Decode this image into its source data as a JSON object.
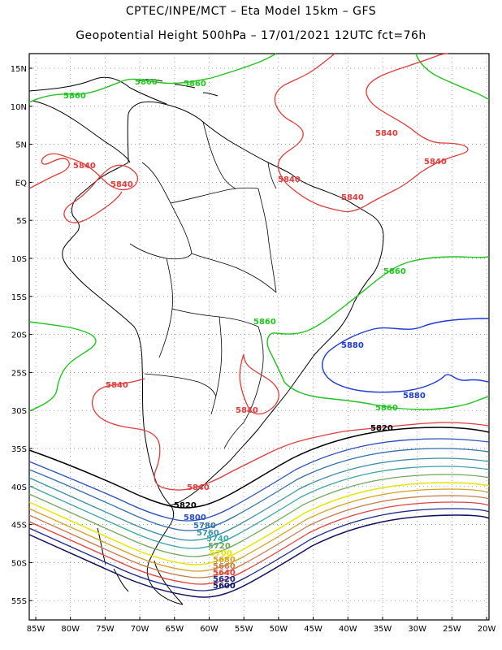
{
  "header": {
    "line1": "CPTEC/INPE/MCT –  Eta Model 15km – GFS",
    "line2": "Geopotential Height 500hPa – 17/01/2021 12UTC fct=76h"
  },
  "map": {
    "lon_labels": [
      "85W",
      "80W",
      "75W",
      "70W",
      "65W",
      "60W",
      "55W",
      "50W",
      "45W",
      "40W",
      "35W",
      "30W",
      "25W",
      "20W"
    ],
    "lat_labels": [
      "15N",
      "10N",
      "5N",
      "EQ",
      "5S",
      "10S",
      "15S",
      "20S",
      "25S",
      "30S",
      "35S",
      "40S",
      "45S",
      "50S",
      "55S"
    ],
    "contour_labels": {
      "5860": "5860",
      "5840": "5840",
      "5880": "5880",
      "5820": "5820",
      "5800": "5800",
      "5780": "5780",
      "5760": "5760",
      "5740": "5740",
      "5720": "5720",
      "5700": "5700",
      "5680": "5680",
      "5660": "5660",
      "5640": "5640",
      "5620": "5620",
      "5600": "5600"
    },
    "contour_colors": {
      "5880": "#1e3ad8",
      "5860": "#1fc41f",
      "5840": "#e23b3b",
      "5820": "#000000",
      "5800": "#2a4fbf",
      "5780": "#2f6fae",
      "5760": "#3a8fa5",
      "5740": "#3aa3a8",
      "5720": "#6fa85a",
      "5700": "#e6e600",
      "5680": "#d4a020",
      "5660": "#c87a4a",
      "5640": "#e04040",
      "5620": "#1c2a90",
      "5600": "#101060"
    }
  }
}
